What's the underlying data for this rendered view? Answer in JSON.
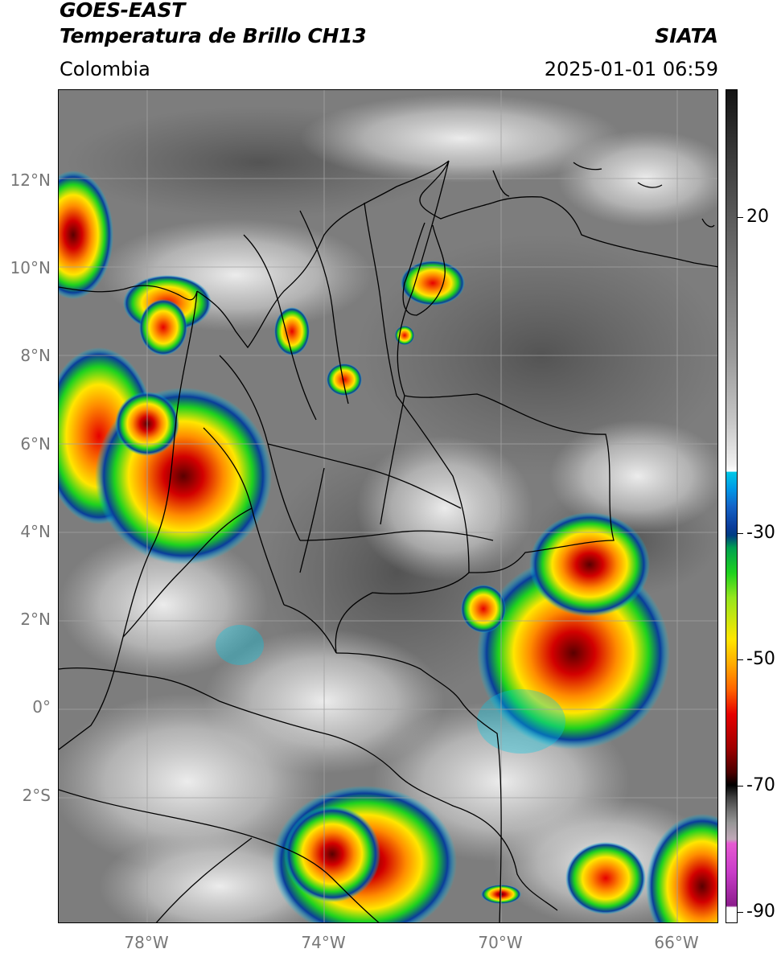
{
  "header": {
    "satellite": "GOES-EAST",
    "product": "Temperatura de Brillo CH13",
    "region": "Colombia",
    "brand": "SIATA",
    "timestamp": "2025-01-01 06:59"
  },
  "map": {
    "lat_labels": [
      "12°N",
      "10°N",
      "8°N",
      "6°N",
      "4°N",
      "2°N",
      "0°",
      "2°S"
    ],
    "lon_labels": [
      "78°W",
      "74°W",
      "70°W",
      "66°W"
    ],
    "extent": {
      "lon_min": -80,
      "lon_max": -65.1,
      "lat_min": -4.8,
      "lat_max": 14
    }
  },
  "colorbar": {
    "labels": [
      "20",
      "-30",
      "-50",
      "-70",
      "-90"
    ],
    "colors": {
      "cyan": "#00c8e6",
      "blue": "#0a3c9a",
      "green": "#1ed21e",
      "yellow": "#ffe600",
      "orange": "#ff8c00",
      "red": "#e60000",
      "darkred": "#6e0000",
      "black": "#000000",
      "magenta": "#e65ad2",
      "purple": "#8c1e8c"
    }
  }
}
